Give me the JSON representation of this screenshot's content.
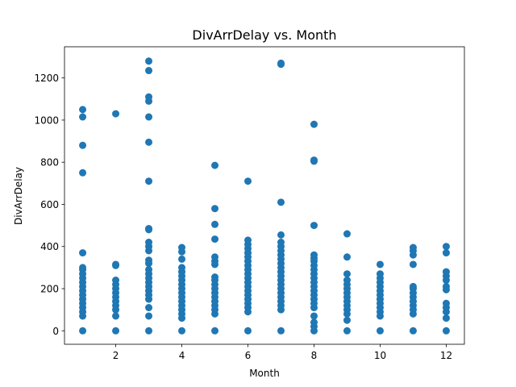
{
  "chart_data": {
    "type": "scatter",
    "title": "DivArrDelay vs. Month",
    "xlabel": "Month",
    "ylabel": "DivArrDelay",
    "xlim": [
      0.45,
      12.55
    ],
    "ylim": [
      -64,
      1348
    ],
    "x_ticks": [
      "2",
      "4",
      "6",
      "8",
      "10",
      "12"
    ],
    "y_ticks": [
      "0",
      "200",
      "400",
      "600",
      "800",
      "1000",
      "1200"
    ],
    "grid": false,
    "marker_color": "#1f77b4",
    "series": [
      {
        "points": [
          {
            "x": 1,
            "y": 0
          },
          {
            "x": 1,
            "y": 70
          },
          {
            "x": 1,
            "y": 90
          },
          {
            "x": 1,
            "y": 110
          },
          {
            "x": 1,
            "y": 130
          },
          {
            "x": 1,
            "y": 150
          },
          {
            "x": 1,
            "y": 170
          },
          {
            "x": 1,
            "y": 190
          },
          {
            "x": 1,
            "y": 210
          },
          {
            "x": 1,
            "y": 230
          },
          {
            "x": 1,
            "y": 250
          },
          {
            "x": 1,
            "y": 270
          },
          {
            "x": 1,
            "y": 290
          },
          {
            "x": 1,
            "y": 300
          },
          {
            "x": 1,
            "y": 370
          },
          {
            "x": 1,
            "y": 750
          },
          {
            "x": 1,
            "y": 880
          },
          {
            "x": 1,
            "y": 1015
          },
          {
            "x": 1,
            "y": 1050
          },
          {
            "x": 2,
            "y": 0
          },
          {
            "x": 2,
            "y": 70
          },
          {
            "x": 2,
            "y": 100
          },
          {
            "x": 2,
            "y": 120
          },
          {
            "x": 2,
            "y": 140
          },
          {
            "x": 2,
            "y": 160
          },
          {
            "x": 2,
            "y": 180
          },
          {
            "x": 2,
            "y": 200
          },
          {
            "x": 2,
            "y": 220
          },
          {
            "x": 2,
            "y": 240
          },
          {
            "x": 2,
            "y": 310
          },
          {
            "x": 2,
            "y": 315
          },
          {
            "x": 2,
            "y": 1030
          },
          {
            "x": 3,
            "y": 0
          },
          {
            "x": 3,
            "y": 70
          },
          {
            "x": 3,
            "y": 110
          },
          {
            "x": 3,
            "y": 150
          },
          {
            "x": 3,
            "y": 170
          },
          {
            "x": 3,
            "y": 190
          },
          {
            "x": 3,
            "y": 210
          },
          {
            "x": 3,
            "y": 230
          },
          {
            "x": 3,
            "y": 250
          },
          {
            "x": 3,
            "y": 270
          },
          {
            "x": 3,
            "y": 290
          },
          {
            "x": 3,
            "y": 320
          },
          {
            "x": 3,
            "y": 335
          },
          {
            "x": 3,
            "y": 380
          },
          {
            "x": 3,
            "y": 400
          },
          {
            "x": 3,
            "y": 420
          },
          {
            "x": 3,
            "y": 480
          },
          {
            "x": 3,
            "y": 485
          },
          {
            "x": 3,
            "y": 710
          },
          {
            "x": 3,
            "y": 895
          },
          {
            "x": 3,
            "y": 1015
          },
          {
            "x": 3,
            "y": 1090
          },
          {
            "x": 3,
            "y": 1110
          },
          {
            "x": 3,
            "y": 1235
          },
          {
            "x": 3,
            "y": 1280
          },
          {
            "x": 4,
            "y": 0
          },
          {
            "x": 4,
            "y": 60
          },
          {
            "x": 4,
            "y": 80
          },
          {
            "x": 4,
            "y": 100
          },
          {
            "x": 4,
            "y": 120
          },
          {
            "x": 4,
            "y": 140
          },
          {
            "x": 4,
            "y": 160
          },
          {
            "x": 4,
            "y": 180
          },
          {
            "x": 4,
            "y": 200
          },
          {
            "x": 4,
            "y": 220
          },
          {
            "x": 4,
            "y": 240
          },
          {
            "x": 4,
            "y": 260
          },
          {
            "x": 4,
            "y": 280
          },
          {
            "x": 4,
            "y": 300
          },
          {
            "x": 4,
            "y": 340
          },
          {
            "x": 4,
            "y": 375
          },
          {
            "x": 4,
            "y": 395
          },
          {
            "x": 5,
            "y": 0
          },
          {
            "x": 5,
            "y": 80
          },
          {
            "x": 5,
            "y": 100
          },
          {
            "x": 5,
            "y": 120
          },
          {
            "x": 5,
            "y": 140
          },
          {
            "x": 5,
            "y": 160
          },
          {
            "x": 5,
            "y": 180
          },
          {
            "x": 5,
            "y": 200
          },
          {
            "x": 5,
            "y": 220
          },
          {
            "x": 5,
            "y": 240
          },
          {
            "x": 5,
            "y": 255
          },
          {
            "x": 5,
            "y": 315
          },
          {
            "x": 5,
            "y": 330
          },
          {
            "x": 5,
            "y": 350
          },
          {
            "x": 5,
            "y": 435
          },
          {
            "x": 5,
            "y": 505
          },
          {
            "x": 5,
            "y": 580
          },
          {
            "x": 5,
            "y": 785
          },
          {
            "x": 6,
            "y": 0
          },
          {
            "x": 6,
            "y": 90
          },
          {
            "x": 6,
            "y": 110
          },
          {
            "x": 6,
            "y": 130
          },
          {
            "x": 6,
            "y": 150
          },
          {
            "x": 6,
            "y": 170
          },
          {
            "x": 6,
            "y": 190
          },
          {
            "x": 6,
            "y": 210
          },
          {
            "x": 6,
            "y": 230
          },
          {
            "x": 6,
            "y": 250
          },
          {
            "x": 6,
            "y": 270
          },
          {
            "x": 6,
            "y": 290
          },
          {
            "x": 6,
            "y": 310
          },
          {
            "x": 6,
            "y": 330
          },
          {
            "x": 6,
            "y": 350
          },
          {
            "x": 6,
            "y": 370
          },
          {
            "x": 6,
            "y": 390
          },
          {
            "x": 6,
            "y": 410
          },
          {
            "x": 6,
            "y": 430
          },
          {
            "x": 6,
            "y": 710
          },
          {
            "x": 7,
            "y": 0
          },
          {
            "x": 7,
            "y": 100
          },
          {
            "x": 7,
            "y": 120
          },
          {
            "x": 7,
            "y": 140
          },
          {
            "x": 7,
            "y": 160
          },
          {
            "x": 7,
            "y": 180
          },
          {
            "x": 7,
            "y": 200
          },
          {
            "x": 7,
            "y": 220
          },
          {
            "x": 7,
            "y": 240
          },
          {
            "x": 7,
            "y": 260
          },
          {
            "x": 7,
            "y": 280
          },
          {
            "x": 7,
            "y": 300
          },
          {
            "x": 7,
            "y": 320
          },
          {
            "x": 7,
            "y": 340
          },
          {
            "x": 7,
            "y": 360
          },
          {
            "x": 7,
            "y": 380
          },
          {
            "x": 7,
            "y": 400
          },
          {
            "x": 7,
            "y": 420
          },
          {
            "x": 7,
            "y": 455
          },
          {
            "x": 7,
            "y": 610
          },
          {
            "x": 7,
            "y": 1265
          },
          {
            "x": 7,
            "y": 1270
          },
          {
            "x": 8,
            "y": 0
          },
          {
            "x": 8,
            "y": 20
          },
          {
            "x": 8,
            "y": 40
          },
          {
            "x": 8,
            "y": 70
          },
          {
            "x": 8,
            "y": 110
          },
          {
            "x": 8,
            "y": 130
          },
          {
            "x": 8,
            "y": 150
          },
          {
            "x": 8,
            "y": 170
          },
          {
            "x": 8,
            "y": 190
          },
          {
            "x": 8,
            "y": 210
          },
          {
            "x": 8,
            "y": 230
          },
          {
            "x": 8,
            "y": 250
          },
          {
            "x": 8,
            "y": 270
          },
          {
            "x": 8,
            "y": 290
          },
          {
            "x": 8,
            "y": 310
          },
          {
            "x": 8,
            "y": 330
          },
          {
            "x": 8,
            "y": 345
          },
          {
            "x": 8,
            "y": 360
          },
          {
            "x": 8,
            "y": 500
          },
          {
            "x": 8,
            "y": 805
          },
          {
            "x": 8,
            "y": 810
          },
          {
            "x": 8,
            "y": 980
          },
          {
            "x": 9,
            "y": 0
          },
          {
            "x": 9,
            "y": 50
          },
          {
            "x": 9,
            "y": 80
          },
          {
            "x": 9,
            "y": 100
          },
          {
            "x": 9,
            "y": 120
          },
          {
            "x": 9,
            "y": 140
          },
          {
            "x": 9,
            "y": 160
          },
          {
            "x": 9,
            "y": 180
          },
          {
            "x": 9,
            "y": 200
          },
          {
            "x": 9,
            "y": 220
          },
          {
            "x": 9,
            "y": 240
          },
          {
            "x": 9,
            "y": 270
          },
          {
            "x": 9,
            "y": 350
          },
          {
            "x": 9,
            "y": 460
          },
          {
            "x": 10,
            "y": 0
          },
          {
            "x": 10,
            "y": 70
          },
          {
            "x": 10,
            "y": 90
          },
          {
            "x": 10,
            "y": 110
          },
          {
            "x": 10,
            "y": 130
          },
          {
            "x": 10,
            "y": 150
          },
          {
            "x": 10,
            "y": 170
          },
          {
            "x": 10,
            "y": 190
          },
          {
            "x": 10,
            "y": 210
          },
          {
            "x": 10,
            "y": 230
          },
          {
            "x": 10,
            "y": 250
          },
          {
            "x": 10,
            "y": 270
          },
          {
            "x": 10,
            "y": 315
          },
          {
            "x": 11,
            "y": 0
          },
          {
            "x": 11,
            "y": 80
          },
          {
            "x": 11,
            "y": 100
          },
          {
            "x": 11,
            "y": 120
          },
          {
            "x": 11,
            "y": 140
          },
          {
            "x": 11,
            "y": 160
          },
          {
            "x": 11,
            "y": 180
          },
          {
            "x": 11,
            "y": 200
          },
          {
            "x": 11,
            "y": 210
          },
          {
            "x": 11,
            "y": 315
          },
          {
            "x": 11,
            "y": 360
          },
          {
            "x": 11,
            "y": 380
          },
          {
            "x": 11,
            "y": 395
          },
          {
            "x": 12,
            "y": 0
          },
          {
            "x": 12,
            "y": 60
          },
          {
            "x": 12,
            "y": 90
          },
          {
            "x": 12,
            "y": 110
          },
          {
            "x": 12,
            "y": 130
          },
          {
            "x": 12,
            "y": 195
          },
          {
            "x": 12,
            "y": 210
          },
          {
            "x": 12,
            "y": 240
          },
          {
            "x": 12,
            "y": 260
          },
          {
            "x": 12,
            "y": 280
          },
          {
            "x": 12,
            "y": 370
          },
          {
            "x": 12,
            "y": 400
          }
        ]
      }
    ]
  }
}
